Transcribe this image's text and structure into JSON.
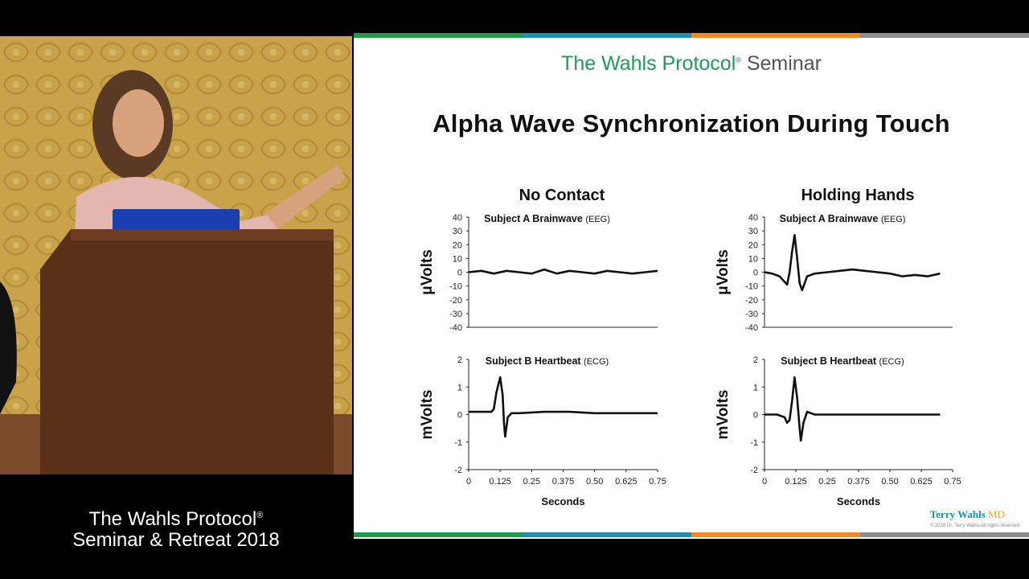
{
  "caption": {
    "line1": "The Wahls Protocol",
    "reg": "®",
    "line2": "Seminar & Retreat 2018"
  },
  "slide": {
    "header_part1": "The Wahls Protocol",
    "header_reg": "®",
    "header_part2": " Seminar",
    "title": "Alpha Wave Synchronization During Touch",
    "logo_name": "Terry Wahls",
    "logo_md": "MD",
    "copyright": "© 2018 Dr. Terry Wahls All rights reserved"
  },
  "colors": {
    "stripe": [
      "#1f9a45",
      "#1c8fb0",
      "#f08a24",
      "#8c8c8c"
    ],
    "line": "#111111"
  },
  "chart_data": [
    {
      "type": "line",
      "column": "No Contact",
      "title": "Subject A Brainwave",
      "title_suffix": "(EEG)",
      "ylabel": "μVolts",
      "xlabel": "",
      "ylim": [
        -40,
        40
      ],
      "yticks": [
        40,
        30,
        20,
        10,
        0,
        -10,
        -20,
        -30,
        -40
      ],
      "xticks": [],
      "x": [
        0,
        0.05,
        0.1,
        0.15,
        0.2,
        0.25,
        0.3,
        0.35,
        0.4,
        0.45,
        0.5,
        0.55,
        0.6,
        0.65,
        0.7,
        0.75
      ],
      "y": [
        0,
        1,
        -1,
        1,
        0,
        -1,
        2,
        -1,
        1,
        0,
        -1,
        1,
        0,
        -1,
        0,
        1
      ]
    },
    {
      "type": "line",
      "column": "No Contact",
      "title": "Subject B Heartbeat",
      "title_suffix": "(ECG)",
      "ylabel": "mVolts",
      "xlabel": "Seconds",
      "ylim": [
        -2,
        2
      ],
      "yticks": [
        2,
        1,
        0,
        -1,
        -2
      ],
      "xticks": [
        "0",
        "0.125",
        "0.25",
        "0.375",
        "0.50",
        "0.625",
        "0.75"
      ],
      "x": [
        0,
        0.05,
        0.09,
        0.1,
        0.11,
        0.125,
        0.135,
        0.14,
        0.145,
        0.155,
        0.17,
        0.2,
        0.3,
        0.4,
        0.5,
        0.6,
        0.75
      ],
      "y": [
        0.1,
        0.1,
        0.1,
        0.2,
        0.8,
        1.35,
        0.7,
        -0.3,
        -0.8,
        -0.1,
        0.05,
        0.05,
        0.1,
        0.1,
        0.05,
        0.05,
        0.05
      ]
    },
    {
      "type": "line",
      "column": "Holding Hands",
      "title": "Subject A Brainwave",
      "title_suffix": "(EEG)",
      "ylabel": "μVolts",
      "xlabel": "",
      "ylim": [
        -40,
        40
      ],
      "yticks": [
        40,
        30,
        20,
        10,
        0,
        -10,
        -20,
        -30,
        -40
      ],
      "xticks": [],
      "x": [
        0,
        0.03,
        0.06,
        0.08,
        0.09,
        0.1,
        0.11,
        0.12,
        0.13,
        0.14,
        0.15,
        0.17,
        0.2,
        0.25,
        0.3,
        0.35,
        0.4,
        0.45,
        0.5,
        0.55,
        0.6,
        0.65,
        0.7
      ],
      "y": [
        0,
        -1,
        -3,
        -7,
        -9,
        0,
        15,
        27,
        10,
        -8,
        -13,
        -3,
        -1,
        0,
        1,
        2,
        1,
        0,
        -1,
        -3,
        -2,
        -3,
        -1
      ]
    },
    {
      "type": "line",
      "column": "Holding Hands",
      "title": "Subject B Heartbeat",
      "title_suffix": "(ECG)",
      "ylabel": "mVolts",
      "xlabel": "Seconds",
      "ylim": [
        -2,
        2
      ],
      "yticks": [
        2,
        1,
        0,
        -1,
        -2
      ],
      "xticks": [
        "0",
        "0.125",
        "0.25",
        "0.375",
        "0.50",
        "0.625",
        "0.75"
      ],
      "x": [
        0,
        0.05,
        0.08,
        0.09,
        0.1,
        0.11,
        0.12,
        0.13,
        0.14,
        0.145,
        0.155,
        0.17,
        0.2,
        0.3,
        0.4,
        0.5,
        0.6,
        0.7
      ],
      "y": [
        0,
        0,
        -0.1,
        -0.3,
        -0.2,
        0.5,
        1.35,
        0.6,
        -0.5,
        -0.95,
        -0.3,
        0.1,
        0,
        0,
        0,
        0,
        0,
        0
      ]
    }
  ],
  "columns": [
    "No Contact",
    "Holding Hands"
  ]
}
